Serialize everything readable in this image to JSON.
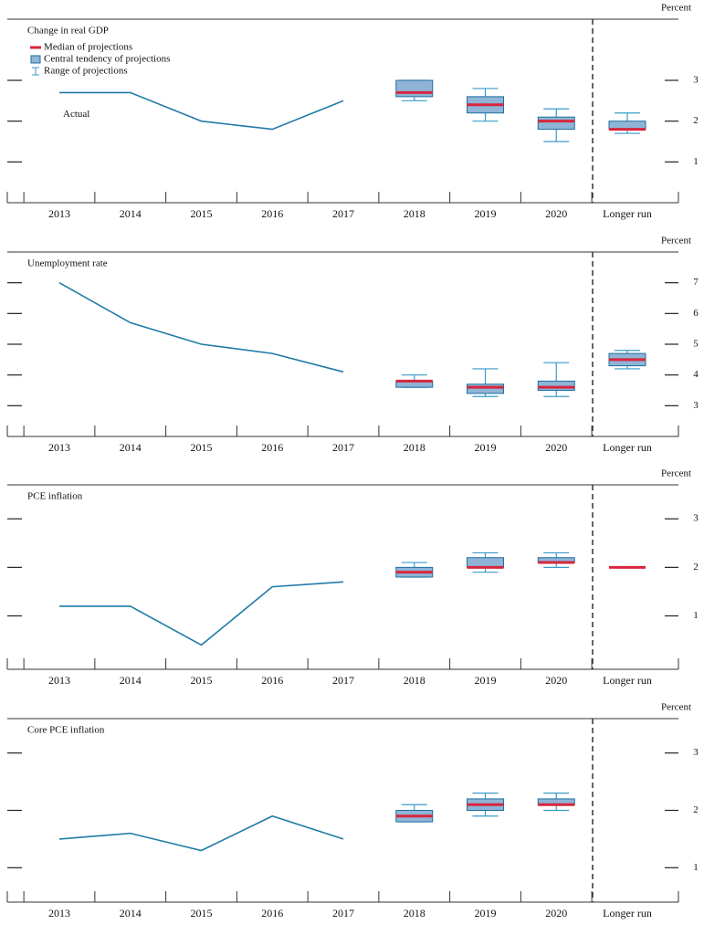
{
  "chart_data": [
    {
      "type": "line",
      "title": "Change in real GDP",
      "y_axis_label": "Percent",
      "annotation": "Actual",
      "legend": [
        {
          "name": "Median of projections",
          "color": "#d7263d"
        },
        {
          "name": "Central tendency of projections",
          "color": "#8fb4d6"
        },
        {
          "name": "Range of projections",
          "color": "#3a9bc8"
        }
      ],
      "categories": [
        "2013",
        "2014",
        "2015",
        "2016",
        "2017",
        "2018",
        "2019",
        "2020",
        "Longer run"
      ],
      "actual": [
        2.7,
        2.7,
        2.0,
        1.8,
        2.5,
        null,
        null,
        null,
        null
      ],
      "median": [
        null,
        null,
        null,
        null,
        null,
        2.7,
        2.4,
        2.0,
        1.8
      ],
      "central_tendency_low": [
        null,
        null,
        null,
        null,
        null,
        2.6,
        2.2,
        1.8,
        1.8
      ],
      "central_tendency_high": [
        null,
        null,
        null,
        null,
        null,
        3.0,
        2.6,
        2.1,
        2.0
      ],
      "range_low": [
        null,
        null,
        null,
        null,
        null,
        2.5,
        2.0,
        1.5,
        1.7
      ],
      "range_high": [
        null,
        null,
        null,
        null,
        null,
        3.0,
        2.8,
        2.3,
        2.2
      ],
      "ylim": [
        0,
        4.5
      ],
      "yticks": [
        1,
        2,
        3
      ]
    },
    {
      "type": "line",
      "title": "Unemployment rate",
      "y_axis_label": "Percent",
      "categories": [
        "2013",
        "2014",
        "2015",
        "2016",
        "2017",
        "2018",
        "2019",
        "2020",
        "Longer run"
      ],
      "actual": [
        7.0,
        5.7,
        5.0,
        4.7,
        4.1,
        null,
        null,
        null,
        null
      ],
      "median": [
        null,
        null,
        null,
        null,
        null,
        3.8,
        3.6,
        3.6,
        4.5
      ],
      "central_tendency_low": [
        null,
        null,
        null,
        null,
        null,
        3.6,
        3.4,
        3.5,
        4.3
      ],
      "central_tendency_high": [
        null,
        null,
        null,
        null,
        null,
        3.8,
        3.7,
        3.8,
        4.7
      ],
      "range_low": [
        null,
        null,
        null,
        null,
        null,
        3.6,
        3.3,
        3.3,
        4.2
      ],
      "range_high": [
        null,
        null,
        null,
        null,
        null,
        4.0,
        4.2,
        4.4,
        4.8
      ],
      "ylim": [
        2,
        8
      ],
      "yticks": [
        3,
        4,
        5,
        6,
        7
      ]
    },
    {
      "type": "line",
      "title": "PCE inflation",
      "y_axis_label": "Percent",
      "categories": [
        "2013",
        "2014",
        "2015",
        "2016",
        "2017",
        "2018",
        "2019",
        "2020",
        "Longer run"
      ],
      "actual": [
        1.2,
        1.2,
        0.4,
        1.6,
        1.7,
        null,
        null,
        null,
        null
      ],
      "median": [
        null,
        null,
        null,
        null,
        null,
        1.9,
        2.0,
        2.1,
        2.0
      ],
      "central_tendency_low": [
        null,
        null,
        null,
        null,
        null,
        1.8,
        2.0,
        2.1,
        2.0
      ],
      "central_tendency_high": [
        null,
        null,
        null,
        null,
        null,
        2.0,
        2.2,
        2.2,
        2.0
      ],
      "range_low": [
        null,
        null,
        null,
        null,
        null,
        1.8,
        1.9,
        2.0,
        2.0
      ],
      "range_high": [
        null,
        null,
        null,
        null,
        null,
        2.1,
        2.3,
        2.3,
        2.0
      ],
      "ylim": [
        -0.1,
        3.7
      ],
      "yticks": [
        1,
        2,
        3
      ]
    },
    {
      "type": "line",
      "title": "Core PCE inflation",
      "y_axis_label": "Percent",
      "categories": [
        "2013",
        "2014",
        "2015",
        "2016",
        "2017",
        "2018",
        "2019",
        "2020",
        "Longer run"
      ],
      "actual": [
        1.5,
        1.6,
        1.3,
        1.9,
        1.5,
        null,
        null,
        null,
        null
      ],
      "median": [
        null,
        null,
        null,
        null,
        null,
        1.9,
        2.1,
        2.1,
        null
      ],
      "central_tendency_low": [
        null,
        null,
        null,
        null,
        null,
        1.8,
        2.0,
        2.1,
        null
      ],
      "central_tendency_high": [
        null,
        null,
        null,
        null,
        null,
        2.0,
        2.2,
        2.2,
        null
      ],
      "range_low": [
        null,
        null,
        null,
        null,
        null,
        1.8,
        1.9,
        2.0,
        null
      ],
      "range_high": [
        null,
        null,
        null,
        null,
        null,
        2.1,
        2.3,
        2.3,
        null
      ],
      "ylim": [
        0.4,
        3.6
      ],
      "yticks": [
        1,
        2,
        3
      ]
    }
  ]
}
